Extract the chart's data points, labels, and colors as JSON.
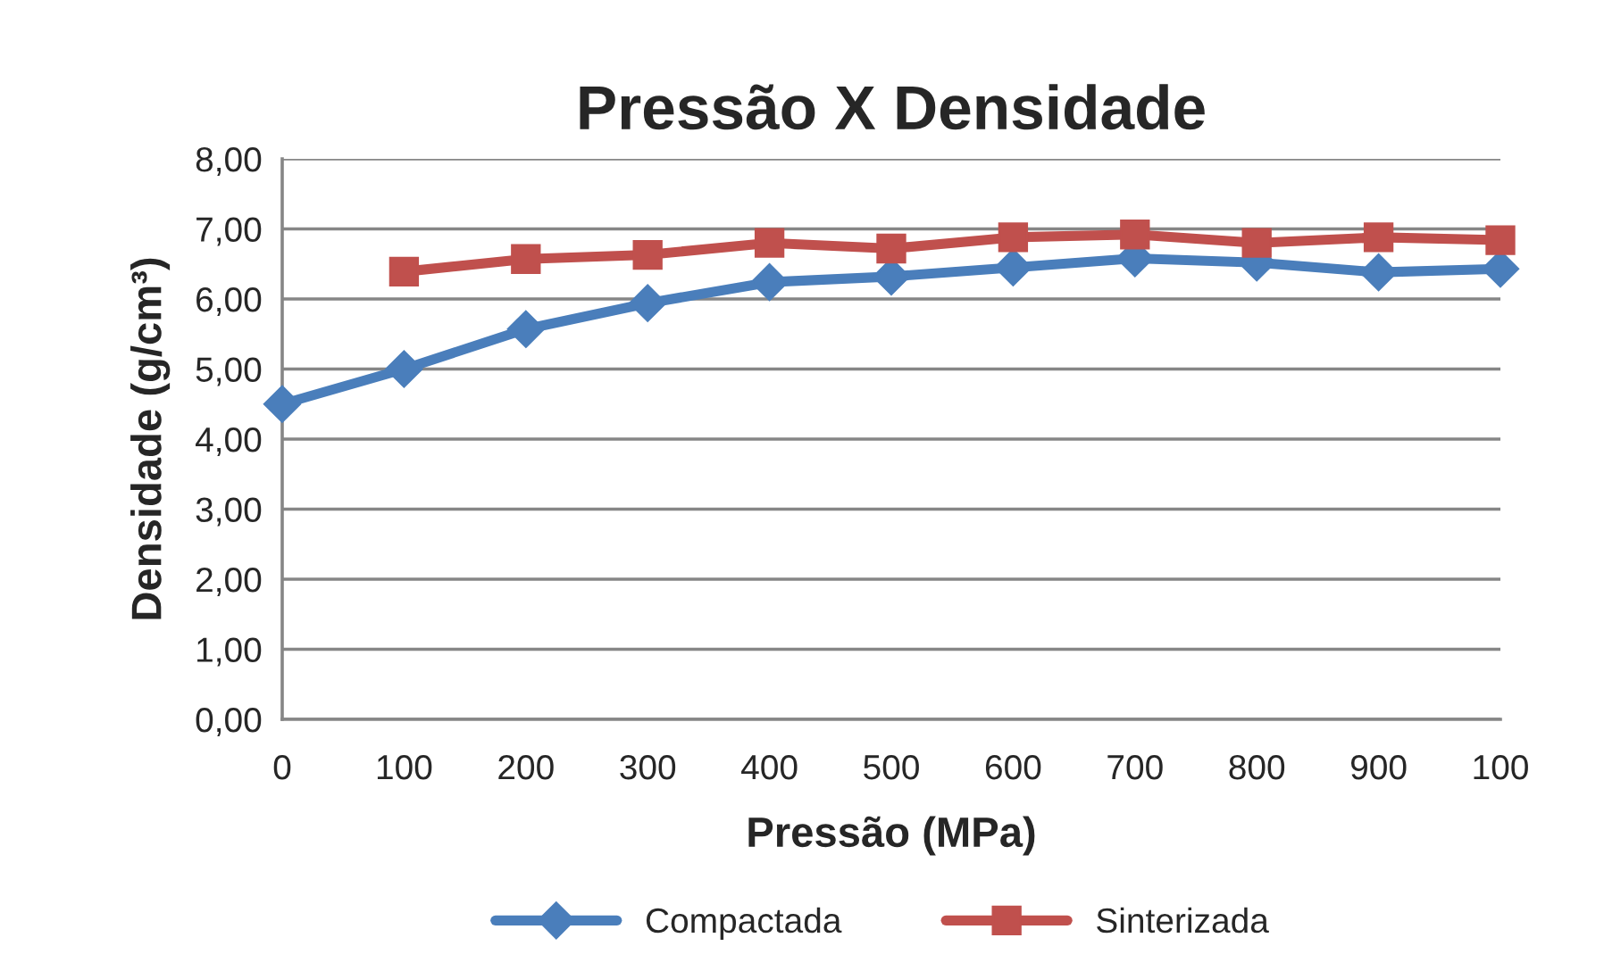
{
  "chart_data": {
    "type": "line",
    "title": "Pressão X Densidade",
    "xlabel": "Pressão (MPa)",
    "ylabel": "Densidade (g/cm³)",
    "categories": [
      "0",
      "100",
      "200",
      "300",
      "400",
      "500",
      "600",
      "700",
      "800",
      "900",
      "100"
    ],
    "series": [
      {
        "name": "Compactada",
        "color": "#4a7ebb",
        "marker": "diamond",
        "values": [
          4.5,
          5.0,
          5.57,
          5.94,
          6.24,
          6.32,
          6.45,
          6.58,
          6.52,
          6.38,
          6.43
        ]
      },
      {
        "name": "Sinterizada",
        "color": "#c0504d",
        "marker": "square",
        "values": [
          null,
          6.39,
          6.57,
          6.63,
          6.8,
          6.72,
          6.88,
          6.92,
          6.8,
          6.88,
          6.84
        ]
      }
    ],
    "ylim": [
      0,
      8
    ],
    "yticks": [
      {
        "value": 0,
        "label": "0,00"
      },
      {
        "value": 1,
        "label": "1,00"
      },
      {
        "value": 2,
        "label": "2,00"
      },
      {
        "value": 3,
        "label": "3,00"
      },
      {
        "value": 4,
        "label": "4,00"
      },
      {
        "value": 5,
        "label": "5,00"
      },
      {
        "value": 6,
        "label": "6,00"
      },
      {
        "value": 7,
        "label": "7,00"
      },
      {
        "value": 8,
        "label": "8,00"
      }
    ],
    "grid": "y",
    "legend": "bottom",
    "line_style": "solid"
  }
}
